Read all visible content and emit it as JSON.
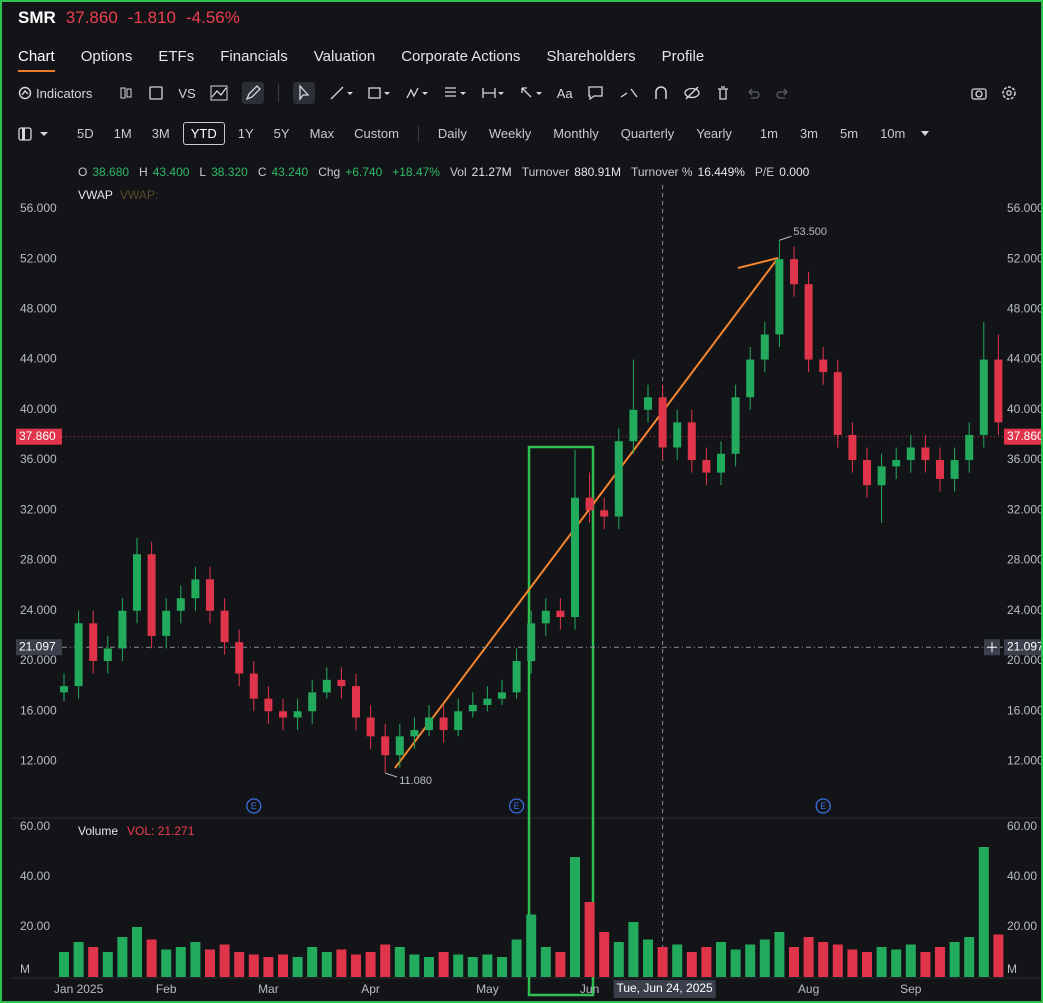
{
  "header": {
    "symbol": "SMR",
    "price": "37.860",
    "change": "-1.810",
    "change_pct": "-4.56%"
  },
  "tabs": [
    "Chart",
    "Options",
    "ETFs",
    "Financials",
    "Valuation",
    "Corporate Actions",
    "Shareholders",
    "Profile"
  ],
  "toolbar": {
    "indicators": "Indicators",
    "compare": "VS",
    "text_tool": "Aa"
  },
  "ranges": [
    "5D",
    "1M",
    "3M",
    "YTD",
    "1Y",
    "5Y",
    "Max",
    "Custom"
  ],
  "intervals": [
    "Daily",
    "Weekly",
    "Monthly",
    "Quarterly",
    "Yearly",
    "1m",
    "3m",
    "5m",
    "10m"
  ],
  "ohlc": [
    {
      "label": "O",
      "value": "38.680"
    },
    {
      "label": "H",
      "value": "43.400"
    },
    {
      "label": "L",
      "value": "38.320"
    },
    {
      "label": "C",
      "value": "43.240"
    },
    {
      "label": "Chg",
      "value": "+6.740"
    },
    {
      "value": "+18.47%"
    },
    {
      "label": "Vol",
      "value": "21.27M"
    },
    {
      "label": "Turnover",
      "value": "880.91M"
    },
    {
      "label": "Turnover %",
      "value": "16.449%"
    },
    {
      "label": "P/E",
      "value": "0.000"
    }
  ],
  "chart_data": {
    "type": "candlestick",
    "legend": [
      "VWAP",
      "VWAP:"
    ],
    "volume_legend": {
      "name": "Volume",
      "label": "VOL: 21.271"
    },
    "categories": [
      null,
      "Jan 2025",
      null,
      null,
      null,
      null,
      null,
      "Feb",
      null,
      null,
      null,
      null,
      null,
      null,
      "Mar",
      null,
      null,
      null,
      null,
      null,
      null,
      "Apr",
      null,
      null,
      null,
      null,
      null,
      null,
      null,
      "May",
      null,
      null,
      null,
      null,
      null,
      null,
      "Jun",
      null,
      null,
      null,
      null,
      null,
      null,
      null,
      null,
      null,
      null,
      null,
      null,
      null,
      null,
      "Aug",
      null,
      null,
      null,
      null,
      null,
      null,
      "Sep",
      null,
      null,
      null,
      null,
      null,
      null
    ],
    "open": [
      17.5,
      18,
      23,
      20,
      21,
      24,
      28.5,
      22,
      24,
      25,
      26.5,
      24,
      21.5,
      19,
      17,
      16,
      15.5,
      16,
      17.5,
      18.5,
      18,
      15.5,
      14,
      12.5,
      14,
      14.5,
      15.5,
      14.5,
      16,
      16.5,
      17,
      17.5,
      20,
      23,
      24,
      23.5,
      33,
      32,
      31.5,
      37.5,
      40,
      41,
      37,
      39,
      36,
      35,
      36.5,
      41,
      44,
      46,
      52,
      50,
      44,
      43,
      38,
      36,
      34,
      35.5,
      36,
      37,
      36,
      34.5,
      36,
      38,
      44
    ],
    "high": [
      19,
      24,
      24,
      22,
      25,
      29.8,
      29.5,
      25,
      26,
      27.5,
      27.5,
      25,
      22.5,
      20,
      18,
      17,
      17,
      18.5,
      19.5,
      19.5,
      19,
      16.5,
      15,
      15,
      15.5,
      16.5,
      16.5,
      17,
      17.5,
      18,
      18.5,
      21,
      24,
      25,
      25,
      36.8,
      35,
      33,
      38.5,
      44,
      42,
      42,
      40,
      40,
      37,
      37.5,
      42,
      45,
      47,
      53.5,
      53,
      51,
      45,
      44,
      39,
      37,
      36.5,
      37,
      38,
      38,
      37,
      37,
      39,
      47,
      46
    ],
    "low": [
      16.8,
      17,
      19,
      19,
      20,
      23,
      21,
      21,
      23,
      24,
      23,
      20.5,
      18,
      16,
      15,
      14.5,
      14.5,
      15,
      17,
      17,
      14.5,
      13,
      11.08,
      11.5,
      13,
      14,
      13.5,
      14,
      15.5,
      16,
      16.5,
      17,
      19,
      22,
      22.5,
      22.5,
      31,
      30.5,
      30.5,
      36.5,
      39,
      36,
      36,
      35,
      34,
      34,
      35.5,
      40,
      43,
      45,
      49,
      43,
      42,
      37,
      35,
      33,
      31,
      34.5,
      35,
      35,
      33.5,
      33.5,
      35,
      37,
      38
    ],
    "close": [
      18,
      23,
      20,
      21,
      24,
      28.5,
      22,
      24,
      25,
      26.5,
      24,
      21.5,
      19,
      17,
      16,
      15.5,
      16,
      17.5,
      18.5,
      18,
      15.5,
      14,
      12.5,
      14,
      14.5,
      15.5,
      14.5,
      16,
      16.5,
      17,
      17.5,
      20,
      23,
      24,
      23.5,
      33,
      32,
      31.5,
      37.5,
      40,
      41,
      37,
      39,
      36,
      35,
      36.5,
      41,
      44,
      46,
      52,
      50,
      44,
      43,
      38,
      36,
      34,
      35.5,
      36,
      37,
      36,
      34.5,
      36,
      38,
      44,
      39
    ],
    "volume": [
      10,
      14,
      12,
      10,
      16,
      20,
      15,
      11,
      12,
      14,
      11,
      13,
      10,
      9,
      8,
      9,
      8,
      12,
      10,
      11,
      9,
      10,
      13,
      12,
      9,
      8,
      10,
      9,
      8,
      9,
      8,
      15,
      25,
      12,
      10,
      48,
      30,
      18,
      14,
      22,
      15,
      12,
      13,
      10,
      12,
      14,
      11,
      13,
      15,
      18,
      12,
      16,
      14,
      13,
      11,
      10,
      12,
      11,
      13,
      10,
      12,
      14,
      16,
      52,
      17
    ],
    "up_color": "#22ab5c",
    "down_color": "#e0344a",
    "ylim": [
      7.5,
      57.9
    ],
    "yticks": [
      {
        "value": 12,
        "label": "12.000"
      },
      {
        "value": 16,
        "label": "16.000"
      },
      {
        "value": 20,
        "label": "20.000"
      },
      {
        "value": 24,
        "label": "24.000"
      },
      {
        "value": 28,
        "label": "28.000"
      },
      {
        "value": 32,
        "label": "32.000"
      },
      {
        "value": 36,
        "label": "36.000"
      },
      {
        "value": 40,
        "label": "40.000"
      },
      {
        "value": 44,
        "label": "44.000"
      },
      {
        "value": 48,
        "label": "48.000"
      },
      {
        "value": 52,
        "label": "52.000"
      },
      {
        "value": 56,
        "label": "56.000"
      }
    ],
    "volume_ylim": [
      0,
      63.6
    ],
    "volume_yticks": [
      {
        "value": 0,
        "label": "M"
      },
      {
        "value": 20,
        "label": "20.00"
      },
      {
        "value": 40,
        "label": "40.00"
      },
      {
        "value": 60,
        "label": "60.00"
      }
    ],
    "last_price": {
      "value": 37.86,
      "label": "37.860"
    },
    "crosshair": {
      "value": 21.097,
      "label": "21.097",
      "index": 41,
      "x_label": "Tue, Jun 24, 2025"
    },
    "high_marker": {
      "index": 49,
      "value": 53.5,
      "label": "53.500"
    },
    "low_marker": {
      "index": 22,
      "value": 11.08,
      "label": "11.080"
    },
    "events": [
      {
        "index": 13,
        "label": "E"
      },
      {
        "index": 31,
        "label": "E"
      },
      {
        "index": 52,
        "label": "E"
      }
    ]
  }
}
